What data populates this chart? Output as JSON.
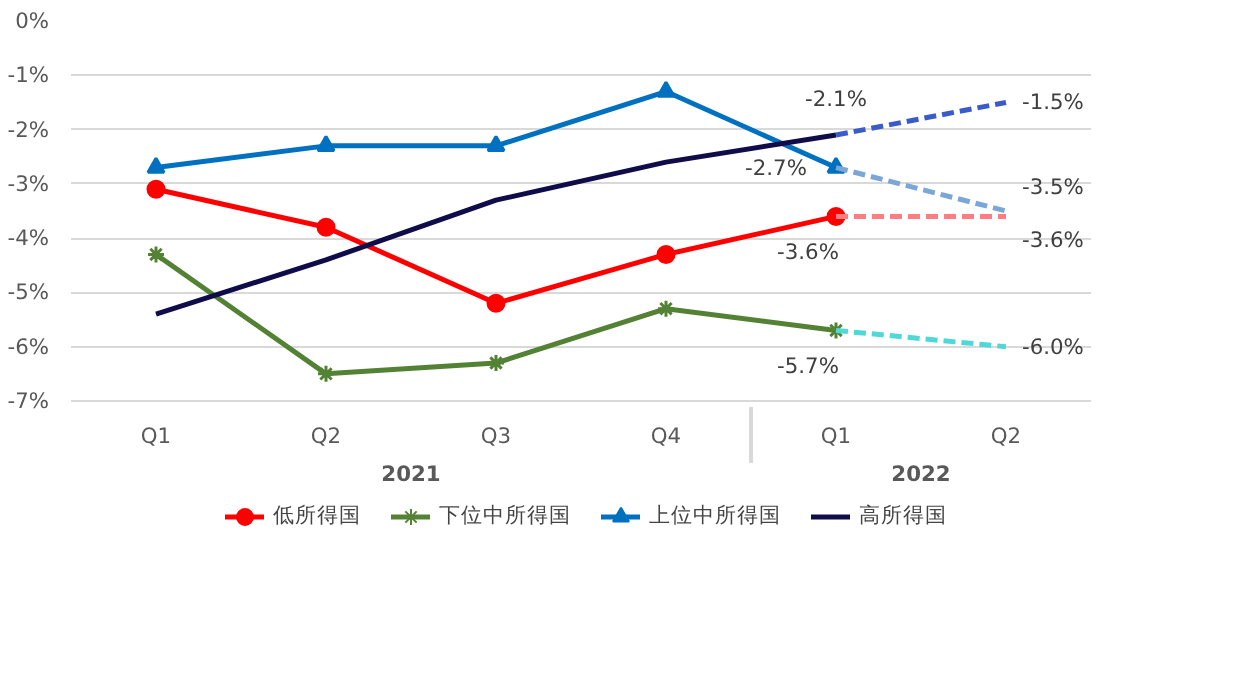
{
  "chart_data": {
    "type": "line",
    "categories": [
      "Q1",
      "Q2",
      "Q3",
      "Q4",
      "Q1",
      "Q2"
    ],
    "annotations": [
      "2021",
      "2022"
    ],
    "ylim": [
      -7,
      0
    ],
    "yticks": [
      {
        "value": 0,
        "label": "0%"
      },
      {
        "value": -1,
        "label": "-1%"
      },
      {
        "value": -2,
        "label": "-2%"
      },
      {
        "value": -3,
        "label": "-3%"
      },
      {
        "value": -4,
        "label": "-4%"
      },
      {
        "value": -5,
        "label": "-5%"
      },
      {
        "value": -6,
        "label": "-6%"
      },
      {
        "value": -7,
        "label": "-7%"
      }
    ],
    "grid": "y",
    "legend": "bottom",
    "series": [
      {
        "name": "低所得国",
        "color": "#ff0000",
        "marker": "circle",
        "line_style": "solid",
        "values": [
          -3.1,
          -3.8,
          -5.2,
          -4.3,
          -3.6,
          null
        ],
        "value_labels": [
          null,
          null,
          null,
          null,
          "-3.6%",
          null
        ]
      },
      {
        "name": "下位中所得国",
        "color": "#548235",
        "marker": "cross",
        "line_style": "solid",
        "values": [
          -4.3,
          -6.5,
          -6.3,
          -5.3,
          -5.7,
          null
        ],
        "value_labels": [
          null,
          null,
          null,
          null,
          "-5.7%",
          null
        ]
      },
      {
        "name": "上位中所得国",
        "color": "#0070c0",
        "marker": "triangle",
        "line_style": "solid",
        "values": [
          -2.7,
          -2.3,
          -2.3,
          -1.3,
          -2.7,
          null
        ],
        "value_labels": [
          null,
          null,
          null,
          null,
          "-2.7%",
          null
        ]
      },
      {
        "name": "高所得国",
        "color": "#100c4a",
        "marker": "none",
        "line_style": "solid",
        "values": [
          -5.4,
          -4.4,
          -3.3,
          -2.6,
          -2.1,
          null
        ],
        "value_labels": [
          null,
          null,
          null,
          null,
          "-2.1%",
          null
        ]
      },
      {
        "color": "#ff7c80",
        "marker": "none",
        "line_style": "dashed",
        "values": [
          null,
          null,
          null,
          null,
          -3.6,
          -3.6
        ],
        "value_labels": [
          null,
          null,
          null,
          null,
          null,
          "-3.6%"
        ]
      },
      {
        "color": "#4fd8d8",
        "marker": "none",
        "line_style": "dashed",
        "values": [
          null,
          null,
          null,
          null,
          -5.7,
          -6.0
        ],
        "value_labels": [
          null,
          null,
          null,
          null,
          null,
          "-6.0%"
        ]
      },
      {
        "color": "#7aa6d8",
        "marker": "none",
        "line_style": "dashed",
        "values": [
          null,
          null,
          null,
          null,
          -2.7,
          -3.5
        ],
        "value_labels": [
          null,
          null,
          null,
          null,
          null,
          "-3.5%"
        ]
      },
      {
        "color": "#3a5cc8",
        "marker": "none",
        "line_style": "dashed",
        "values": [
          null,
          null,
          null,
          null,
          -2.1,
          -1.5
        ],
        "value_labels": [
          null,
          null,
          null,
          null,
          null,
          "-1.5%"
        ]
      }
    ]
  }
}
